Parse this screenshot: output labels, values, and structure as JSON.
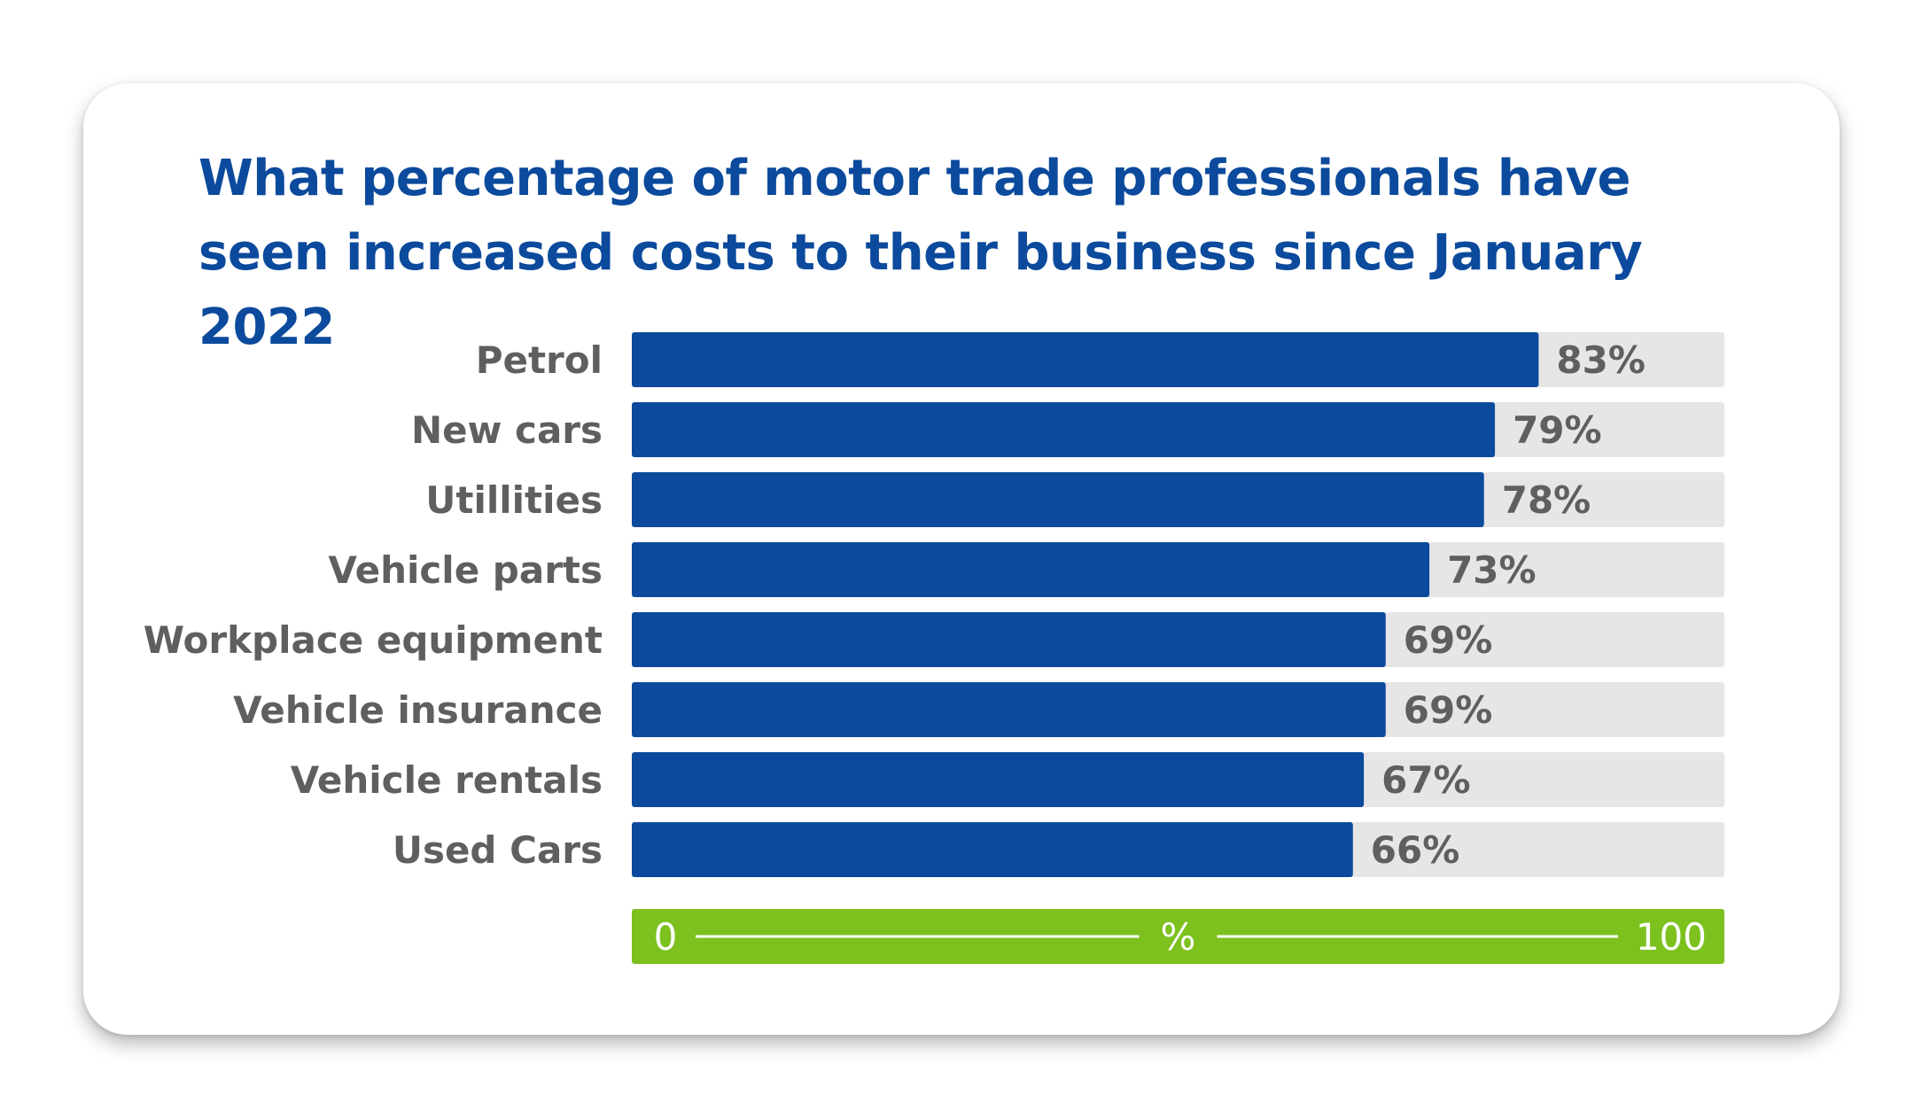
{
  "chart_data": {
    "type": "bar",
    "orientation": "horizontal",
    "title": "What percentage of motor trade professionals have seen increased costs to their business since January 2022",
    "categories": [
      "Petrol",
      "New cars",
      "Utillities",
      "Vehicle parts",
      "Workplace equipment",
      "Vehicle insurance",
      "Vehicle rentals",
      "Used Cars"
    ],
    "values": [
      83,
      79,
      78,
      73,
      69,
      69,
      67,
      66
    ],
    "value_labels": [
      "83%",
      "79%",
      "78%",
      "73%",
      "69%",
      "69%",
      "67%",
      "66%"
    ],
    "xlim": [
      0,
      100
    ],
    "axis": {
      "min_label": "0",
      "unit_label": "%",
      "max_label": "100"
    },
    "grid": false,
    "legend": "none",
    "colors": {
      "bar": "#0b4a9c",
      "track": "#e6e6e6",
      "axis_band": "#7dc11e",
      "title": "#0b4a9c",
      "labels": "#5f5f5f"
    }
  }
}
